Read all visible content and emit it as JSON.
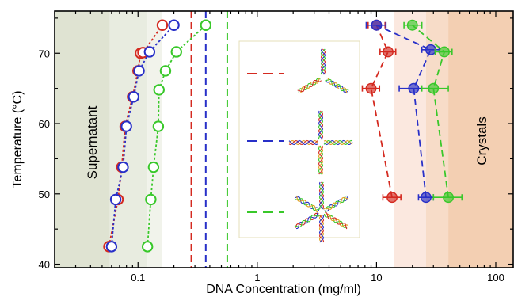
{
  "chart_data": {
    "type": "scatter",
    "title": "",
    "xlabel": "DNA Concentration (mg/ml)",
    "ylabel": "Temperature (°C)",
    "xscale": "log",
    "xlim": [
      0.02,
      140
    ],
    "ylim": [
      39.5,
      76
    ],
    "x_ticks": [
      0.1,
      1,
      10,
      100
    ],
    "x_tick_labels": [
      "0.1",
      "1",
      "10",
      "100"
    ],
    "y_ticks": [
      40,
      50,
      60,
      70
    ],
    "y_tick_labels": [
      "40",
      "50",
      "60",
      "70"
    ],
    "annotations": {
      "left": "Supernatant",
      "right": "Crystals"
    },
    "legend": {
      "placement": "center inset",
      "entries": [
        "3-arm DNA motif",
        "4-arm DNA motif",
        "6-arm DNA motif"
      ]
    },
    "colors": {
      "red": "#d42a20",
      "blue": "#2830c8",
      "green": "#39c82a"
    },
    "series": [
      {
        "color": "red",
        "supernatant": {
          "x": [
            0.057,
            0.068,
            0.073,
            0.078,
            0.09,
            0.1,
            0.105,
            0.11,
            0.16
          ],
          "y": [
            42.5,
            49.2,
            53.8,
            59.6,
            63.8,
            67.5,
            70.0,
            70.1,
            74.0
          ]
        },
        "crystals": {
          "x": [
            13.5,
            9.0,
            12.5,
            10.0
          ],
          "y": [
            49.5,
            65.0,
            70.2,
            74.0
          ],
          "xerr_low": [
            2.2,
            1.4,
            1.8,
            1.5
          ],
          "xerr_high": [
            2.5,
            1.6,
            2.0,
            1.8
          ]
        },
        "threshold_x": 0.28
      },
      {
        "color": "blue",
        "supernatant": {
          "x": [
            0.06,
            0.065,
            0.075,
            0.08,
            0.092,
            0.102,
            0.125,
            0.2
          ],
          "y": [
            42.5,
            49.2,
            53.8,
            59.6,
            63.8,
            67.5,
            70.2,
            74.0
          ]
        },
        "crystals": {
          "x": [
            26.0,
            20.5,
            28.5,
            10.0
          ],
          "y": [
            49.5,
            65.0,
            70.5,
            74.0
          ],
          "xerr_low": [
            3.5,
            5.0,
            4.5,
            1.8
          ],
          "xerr_high": [
            4.0,
            7.0,
            5.0,
            2.0
          ]
        },
        "threshold_x": 0.37
      },
      {
        "color": "green",
        "supernatant": {
          "x": [
            0.12,
            0.128,
            0.135,
            0.148,
            0.15,
            0.17,
            0.21,
            0.37
          ],
          "y": [
            42.5,
            49.2,
            53.8,
            59.6,
            64.8,
            67.5,
            70.2,
            74.0
          ]
        },
        "crystals": {
          "x": [
            40.0,
            30.0,
            37.0,
            20.0
          ],
          "y": [
            49.5,
            65.0,
            70.2,
            74.0
          ],
          "xerr_low": [
            10.0,
            6.0,
            6.0,
            3.0
          ],
          "xerr_high": [
            12.0,
            10.0,
            6.0,
            4.0
          ]
        },
        "threshold_x": 0.56
      }
    ]
  }
}
